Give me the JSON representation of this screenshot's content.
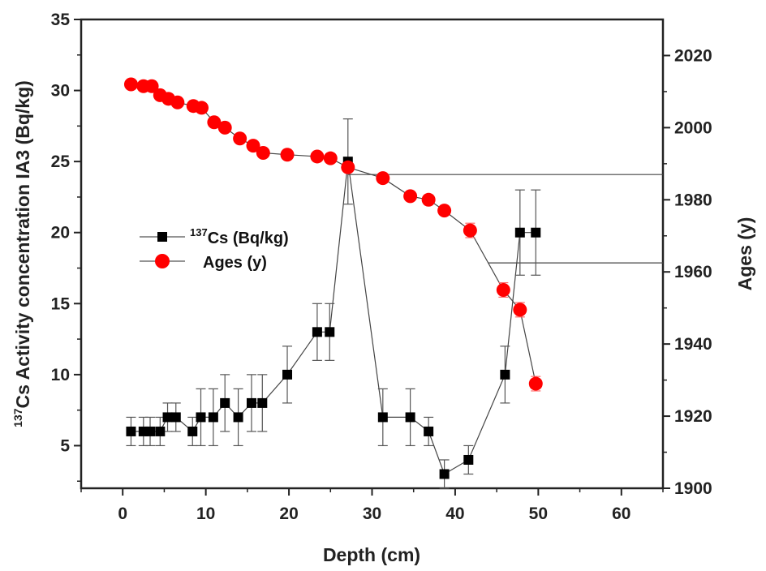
{
  "chart_data": {
    "type": "scatter",
    "x_axis": {
      "label": "Depth (cm)",
      "range": [
        -5,
        65
      ],
      "ticks": [
        0,
        10,
        20,
        30,
        40,
        50,
        60
      ]
    },
    "y_left": {
      "label_sup": "137",
      "label_rest": "Cs Activity concentration IA3 (Bq/kg)",
      "range": [
        2,
        35
      ],
      "ticks": [
        5,
        10,
        15,
        20,
        25,
        30,
        35
      ]
    },
    "y_right": {
      "label": "Ages (y)",
      "range": [
        1900,
        2030
      ],
      "ticks": [
        1900,
        1920,
        1940,
        1960,
        1980,
        2000,
        2020
      ]
    },
    "legend": {
      "position": "middle-left",
      "entries": [
        {
          "label_sup": "137",
          "label_rest": "Cs (Bq/kg)"
        },
        {
          "label_sup": "",
          "label_rest": "Ages (y)"
        }
      ]
    },
    "series": [
      {
        "axis": "left",
        "color": "#000000",
        "marker": "square",
        "line": true,
        "points": [
          {
            "x": 1.0,
            "y": 6,
            "err": 1
          },
          {
            "x": 2.5,
            "y": 6,
            "err": 1
          },
          {
            "x": 3.3,
            "y": 6,
            "err": 1
          },
          {
            "x": 4.5,
            "y": 6,
            "err": 1
          },
          {
            "x": 5.4,
            "y": 7,
            "err": 1
          },
          {
            "x": 6.4,
            "y": 7,
            "err": 1
          },
          {
            "x": 8.4,
            "y": 6,
            "err": 1
          },
          {
            "x": 9.4,
            "y": 7,
            "err": 2
          },
          {
            "x": 10.9,
            "y": 7,
            "err": 2
          },
          {
            "x": 12.3,
            "y": 8,
            "err": 2
          },
          {
            "x": 13.9,
            "y": 7,
            "err": 2
          },
          {
            "x": 15.5,
            "y": 8,
            "err": 2
          },
          {
            "x": 16.8,
            "y": 8,
            "err": 2
          },
          {
            "x": 19.8,
            "y": 10,
            "err": 2
          },
          {
            "x": 23.4,
            "y": 13,
            "err": 2
          },
          {
            "x": 24.9,
            "y": 13,
            "err": 2
          },
          {
            "x": 27.1,
            "y": 25,
            "err": 3
          },
          {
            "x": 31.3,
            "y": 7,
            "err": 2
          },
          {
            "x": 34.6,
            "y": 7,
            "err": 2
          },
          {
            "x": 36.8,
            "y": 6,
            "err": 1
          },
          {
            "x": 38.7,
            "y": 3,
            "err": 1
          },
          {
            "x": 41.6,
            "y": 4,
            "err": 1
          },
          {
            "x": 46.0,
            "y": 10,
            "err": 2
          },
          {
            "x": 47.8,
            "y": 20,
            "err": 3
          },
          {
            "x": 49.7,
            "y": 20,
            "err": 3
          }
        ]
      },
      {
        "axis": "right",
        "color": "#ff0000",
        "marker": "circle",
        "line": true,
        "points": [
          {
            "x": 1.0,
            "y": 2012,
            "err": 0
          },
          {
            "x": 2.5,
            "y": 2011.5,
            "err": 0
          },
          {
            "x": 3.5,
            "y": 2011.5,
            "err": 0
          },
          {
            "x": 4.5,
            "y": 2009,
            "err": 0
          },
          {
            "x": 5.5,
            "y": 2008,
            "err": 0
          },
          {
            "x": 6.6,
            "y": 2007,
            "err": 0
          },
          {
            "x": 8.5,
            "y": 2006,
            "err": 0
          },
          {
            "x": 9.5,
            "y": 2005.5,
            "err": 0
          },
          {
            "x": 11.0,
            "y": 2001.5,
            "err": 0
          },
          {
            "x": 12.3,
            "y": 2000,
            "err": 0
          },
          {
            "x": 14.1,
            "y": 1997,
            "err": 0
          },
          {
            "x": 15.7,
            "y": 1995,
            "err": 0
          },
          {
            "x": 16.9,
            "y": 1993,
            "err": 0
          },
          {
            "x": 19.8,
            "y": 1992.5,
            "err": 0
          },
          {
            "x": 23.4,
            "y": 1992,
            "err": 0
          },
          {
            "x": 25.0,
            "y": 1991.5,
            "err": 0
          },
          {
            "x": 27.1,
            "y": 1989,
            "err": 1
          },
          {
            "x": 31.3,
            "y": 1986,
            "err": 1
          },
          {
            "x": 34.6,
            "y": 1981,
            "err": 1
          },
          {
            "x": 36.8,
            "y": 1980,
            "err": 1
          },
          {
            "x": 38.7,
            "y": 1977,
            "err": 1
          },
          {
            "x": 41.8,
            "y": 1971.5,
            "err": 2
          },
          {
            "x": 45.8,
            "y": 1955,
            "err": 2
          },
          {
            "x": 47.8,
            "y": 1949.5,
            "err": 2
          },
          {
            "x": 49.7,
            "y": 1929,
            "err": 2
          }
        ]
      }
    ],
    "reference_lines": [
      {
        "x_from": 27.1,
        "x_to": 65,
        "y": 1987,
        "axis": "right"
      },
      {
        "x_from": 44.0,
        "x_to": 65,
        "y": 1962.5,
        "axis": "right"
      }
    ]
  }
}
